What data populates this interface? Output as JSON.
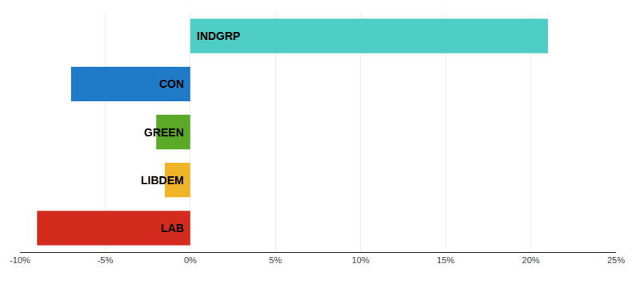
{
  "chart_data": {
    "type": "bar",
    "orientation": "horizontal",
    "categories": [
      "INDGRP",
      "CON",
      "GREEN",
      "LIBDEM",
      "LAB"
    ],
    "values": [
      21.0,
      -7.0,
      -2.0,
      -1.5,
      -9.0
    ],
    "colors": [
      "#4ecdc4",
      "#1f7bc8",
      "#5aaa28",
      "#f0b429",
      "#d32b1e"
    ],
    "xlim": [
      -10,
      25
    ],
    "xticks": [
      {
        "value": -10,
        "label": "-10%"
      },
      {
        "value": -5,
        "label": "-5%"
      },
      {
        "value": 0,
        "label": "0%"
      },
      {
        "value": 5,
        "label": "5%"
      },
      {
        "value": 10,
        "label": "10%"
      },
      {
        "value": 15,
        "label": "15%"
      },
      {
        "value": 20,
        "label": "20%"
      },
      {
        "value": 25,
        "label": "25%"
      }
    ],
    "grid": true,
    "tick_labels": "x"
  }
}
